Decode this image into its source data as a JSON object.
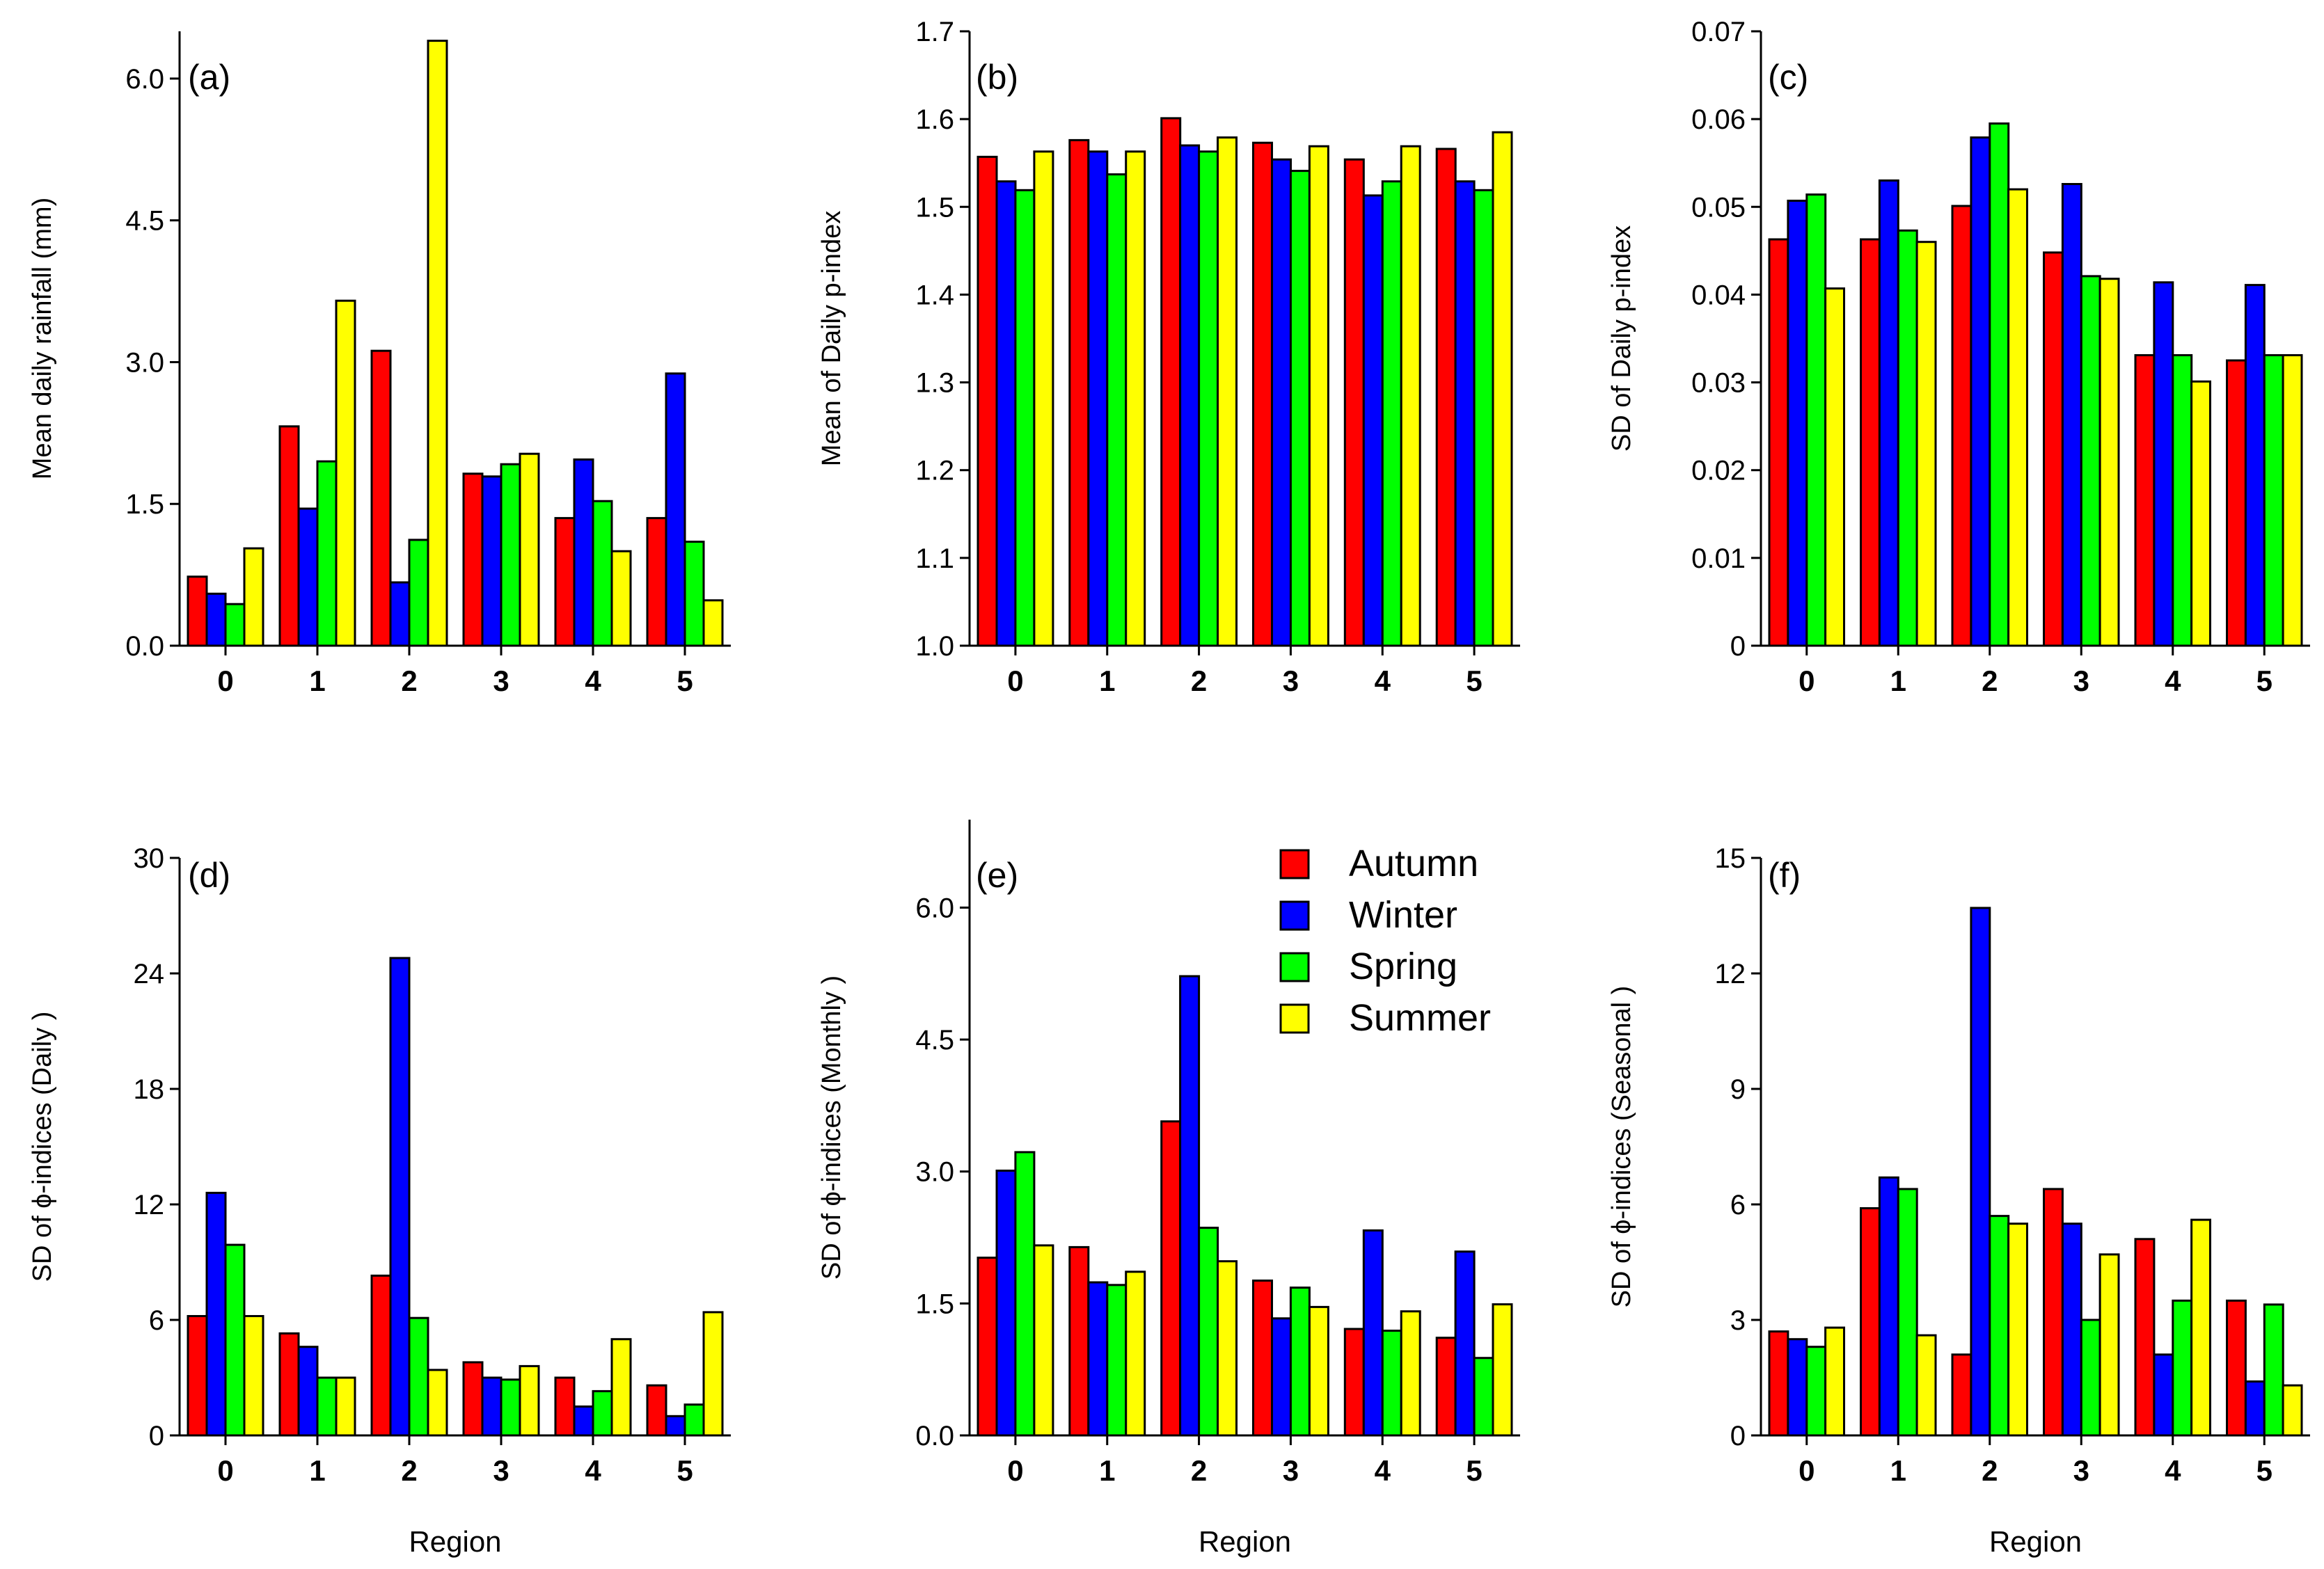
{
  "colors": {
    "Autumn": "#FF0000",
    "Winter": "#0000FF",
    "Spring": "#00FF00",
    "Summer": "#FFFF00",
    "axis": "#000000"
  },
  "x_axis_title": "Region",
  "legend": [
    "Autumn",
    "Winter",
    "Spring",
    "Summer"
  ],
  "chart_data": [
    {
      "panel": "(a)",
      "type": "bar",
      "categories": [
        "0",
        "1",
        "2",
        "3",
        "4",
        "5"
      ],
      "ylabel": "Mean daily rainfall (mm)",
      "xlabel": "",
      "ylim": [
        0,
        6.5
      ],
      "yticks": [
        0,
        1.5,
        3,
        4.5,
        6
      ],
      "ytick_labels": [
        "0.0",
        "1.5",
        "3.0",
        "4.5",
        "6.0"
      ],
      "series": [
        {
          "name": "Autumn",
          "values": [
            0.73,
            2.32,
            3.12,
            1.82,
            1.35,
            1.35
          ]
        },
        {
          "name": "Winter",
          "values": [
            0.55,
            1.45,
            0.67,
            1.79,
            1.97,
            2.88
          ]
        },
        {
          "name": "Spring",
          "values": [
            0.44,
            1.95,
            1.12,
            1.92,
            1.53,
            1.1
          ]
        },
        {
          "name": "Summer",
          "values": [
            1.03,
            3.65,
            6.4,
            2.03,
            1.0,
            0.48
          ]
        }
      ]
    },
    {
      "panel": "(b)",
      "type": "bar",
      "categories": [
        "0",
        "1",
        "2",
        "3",
        "4",
        "5"
      ],
      "ylabel": "Mean of Daily p-index",
      "xlabel": "",
      "ylim": [
        1.0,
        1.7
      ],
      "yticks": [
        1.0,
        1.1,
        1.2,
        1.3,
        1.4,
        1.5,
        1.6,
        1.7
      ],
      "ytick_labels": [
        "1.0",
        "1.1",
        "1.2",
        "1.3",
        "1.4",
        "1.5",
        "1.6",
        "1.7"
      ],
      "series": [
        {
          "name": "Autumn",
          "values": [
            1.557,
            1.576,
            1.601,
            1.573,
            1.554,
            1.566
          ]
        },
        {
          "name": "Winter",
          "values": [
            1.529,
            1.563,
            1.57,
            1.554,
            1.513,
            1.529
          ]
        },
        {
          "name": "Spring",
          "values": [
            1.519,
            1.537,
            1.563,
            1.541,
            1.529,
            1.519
          ]
        },
        {
          "name": "Summer",
          "values": [
            1.563,
            1.563,
            1.579,
            1.569,
            1.569,
            1.585
          ]
        }
      ]
    },
    {
      "panel": "(c)",
      "type": "bar",
      "categories": [
        "0",
        "1",
        "2",
        "3",
        "4",
        "5"
      ],
      "ylabel": "SD of Daily p-index",
      "xlabel": "",
      "ylim": [
        0,
        0.07
      ],
      "yticks": [
        0,
        0.01,
        0.02,
        0.03,
        0.04,
        0.05,
        0.06,
        0.07
      ],
      "ytick_labels": [
        "0",
        "0.01",
        "0.02",
        "0.03",
        "0.04",
        "0.05",
        "0.06",
        "0.07"
      ],
      "series": [
        {
          "name": "Autumn",
          "values": [
            0.0463,
            0.0463,
            0.0501,
            0.0448,
            0.0331,
            0.0325
          ]
        },
        {
          "name": "Winter",
          "values": [
            0.0507,
            0.053,
            0.0579,
            0.0526,
            0.0414,
            0.0411
          ]
        },
        {
          "name": "Spring",
          "values": [
            0.0514,
            0.0473,
            0.0595,
            0.0421,
            0.0331,
            0.0331
          ]
        },
        {
          "name": "Summer",
          "values": [
            0.0407,
            0.046,
            0.052,
            0.0418,
            0.0301,
            0.0331
          ]
        }
      ]
    },
    {
      "panel": "(d)",
      "type": "bar",
      "categories": [
        "0",
        "1",
        "2",
        "3",
        "4",
        "5"
      ],
      "ylabel": "SD of ϕ-indices (Daily )",
      "xlabel": "Region",
      "ylim": [
        0,
        30
      ],
      "yticks": [
        0,
        6,
        12,
        18,
        24,
        30
      ],
      "ytick_labels": [
        "0",
        "6",
        "12",
        "18",
        "24",
        "30"
      ],
      "series": [
        {
          "name": "Autumn",
          "values": [
            6.2,
            5.3,
            8.3,
            3.8,
            3.0,
            2.6
          ]
        },
        {
          "name": "Winter",
          "values": [
            12.6,
            4.6,
            24.8,
            3.0,
            1.5,
            1.0
          ]
        },
        {
          "name": "Spring",
          "values": [
            9.9,
            3.0,
            6.1,
            2.9,
            2.3,
            1.6
          ]
        },
        {
          "name": "Summer",
          "values": [
            6.2,
            3.0,
            3.4,
            3.6,
            5.0,
            6.4
          ]
        }
      ]
    },
    {
      "panel": "(e)",
      "type": "bar",
      "categories": [
        "0",
        "1",
        "2",
        "3",
        "4",
        "5"
      ],
      "ylabel": "SD of ϕ-indices (Monthly )",
      "xlabel": "Region",
      "ylim": [
        0,
        7.0
      ],
      "yticks": [
        0,
        1.5,
        3,
        4.5,
        6
      ],
      "ytick_labels": [
        "0.0",
        "1.5",
        "3.0",
        "4.5",
        "6.0"
      ],
      "series": [
        {
          "name": "Autumn",
          "values": [
            2.02,
            2.14,
            3.57,
            1.76,
            1.21,
            1.11
          ]
        },
        {
          "name": "Winter",
          "values": [
            3.01,
            1.74,
            5.22,
            1.33,
            2.33,
            2.09
          ]
        },
        {
          "name": "Spring",
          "values": [
            3.22,
            1.71,
            2.36,
            1.68,
            1.19,
            0.88
          ]
        },
        {
          "name": "Summer",
          "values": [
            2.16,
            1.86,
            1.98,
            1.46,
            1.41,
            1.49
          ]
        }
      ]
    },
    {
      "panel": "(f)",
      "type": "bar",
      "categories": [
        "0",
        "1",
        "2",
        "3",
        "4",
        "5"
      ],
      "ylabel": "SD of ϕ-indices (Seasonal )",
      "xlabel": "Region",
      "ylim": [
        0,
        15
      ],
      "yticks": [
        0,
        3,
        6,
        9,
        12,
        15
      ],
      "ytick_labels": [
        "0",
        "3",
        "6",
        "9",
        "12",
        "15"
      ],
      "series": [
        {
          "name": "Autumn",
          "values": [
            2.7,
            5.9,
            2.1,
            6.4,
            5.1,
            3.5
          ]
        },
        {
          "name": "Winter",
          "values": [
            2.5,
            6.7,
            13.7,
            5.5,
            2.1,
            1.4
          ]
        },
        {
          "name": "Spring",
          "values": [
            2.3,
            6.4,
            5.7,
            3.0,
            3.5,
            3.4
          ]
        },
        {
          "name": "Summer",
          "values": [
            2.8,
            2.6,
            5.5,
            4.7,
            5.6,
            1.3
          ]
        }
      ]
    }
  ]
}
